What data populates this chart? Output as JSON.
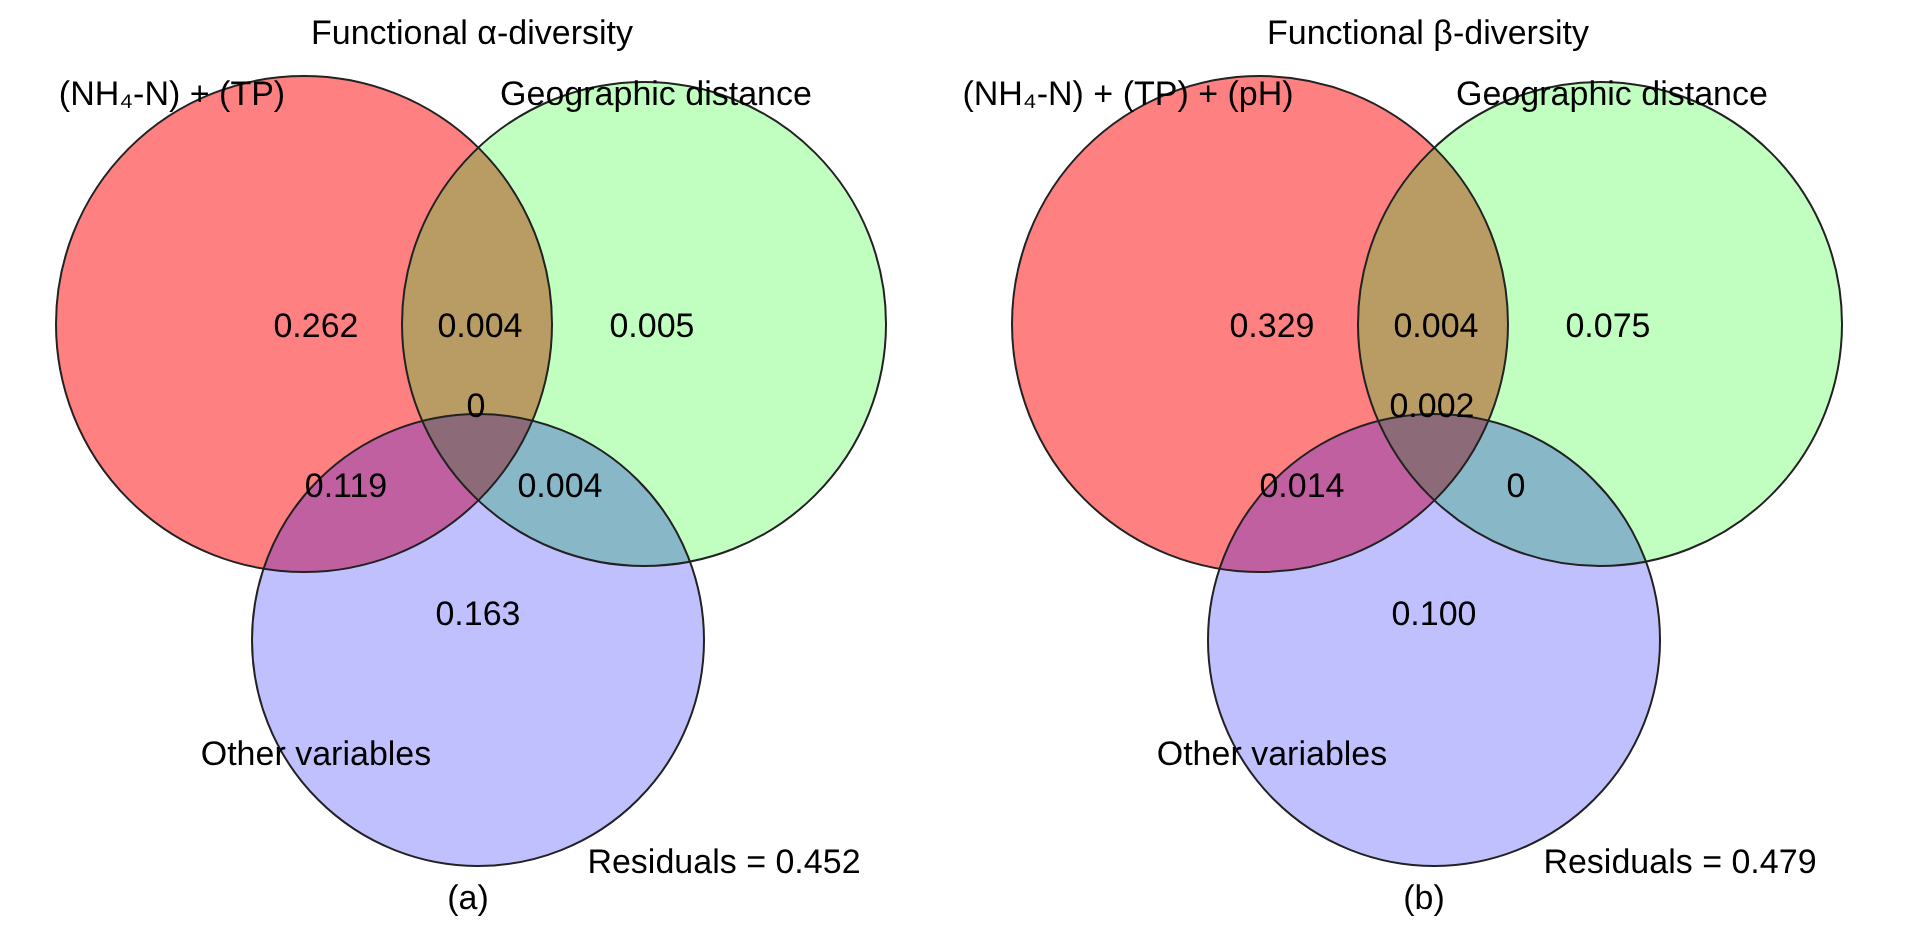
{
  "chart_data": [
    {
      "type": "other",
      "title": "Functional α-diversity",
      "categories": [
        null,
        null,
        null,
        null,
        null,
        null,
        null
      ],
      "values": [
        0.262,
        0.004,
        0.005,
        0,
        0.119,
        0.004,
        0.163
      ],
      "data_labels": true,
      "colors": [
        "#ff8080",
        "#b89c64",
        "#c0ffc0",
        "#8c6a78",
        "#c060a0",
        "#88b8c8",
        "#c0c0ff"
      ],
      "annotations": [
        "(NH₄-N) + (TP)",
        "Geographic distance",
        "Other variables",
        "Residuals =  0.452",
        "(a)"
      ]
    },
    {
      "type": "other",
      "title": "Functional β-diversity",
      "categories": [
        null,
        null,
        null,
        null,
        null,
        null,
        null
      ],
      "values": [
        0.329,
        0.004,
        0.075,
        0.002,
        0.014,
        0,
        0.1
      ],
      "value_labels": [
        "0.329",
        "0.004",
        "0.075",
        "0.002",
        "0.014",
        "0",
        "0.100"
      ],
      "colors": [
        "#ff8080",
        "#b89c64",
        "#c0ffc0",
        "#8c6a78",
        "#c060a0",
        "#88b8c8",
        "#c0c0ff"
      ],
      "annotations": [
        "(NH₄-N) + (TP) + (pH)",
        "Geographic distance",
        "Other variables",
        "Residuals =  0.479",
        "(b)"
      ]
    }
  ]
}
